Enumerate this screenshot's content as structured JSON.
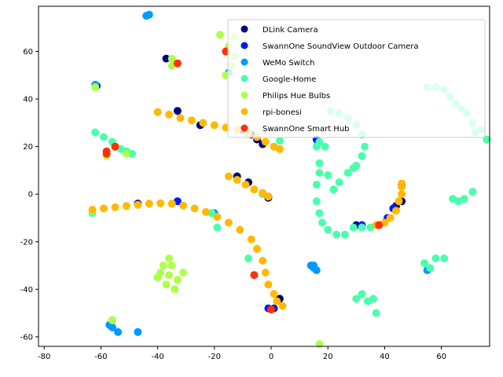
{
  "chart_data": {
    "type": "scatter",
    "title": "",
    "xlabel": "",
    "ylabel": "",
    "xlim": [
      -82,
      77
    ],
    "ylim": [
      -64,
      79
    ],
    "xticks": [
      -80,
      -60,
      -40,
      -20,
      0,
      20,
      40,
      60
    ],
    "yticks": [
      -60,
      -40,
      -20,
      0,
      20,
      40,
      60
    ],
    "grid": false,
    "legend_position": "top-right",
    "series": [
      {
        "name": "DLink Camera",
        "color": "#00007f",
        "points": [
          [
            -37,
            57
          ],
          [
            -33,
            35
          ],
          [
            -25,
            29
          ],
          [
            -12,
            7.5
          ],
          [
            -8,
            5
          ],
          [
            -10,
            27
          ],
          [
            -7,
            25
          ],
          [
            -5,
            23
          ],
          [
            -3,
            21
          ],
          [
            -1,
            -1
          ],
          [
            3,
            -44
          ],
          [
            -1,
            -1.5
          ],
          [
            44,
            -5
          ],
          [
            46,
            -3
          ],
          [
            46,
            4
          ],
          [
            30,
            -13
          ],
          [
            -47,
            -4
          ]
        ]
      },
      {
        "name": "SwannOne SoundView Outdoor Camera",
        "color": "#0019ff",
        "points": [
          [
            -61.5,
            45.5
          ],
          [
            -55,
            20
          ],
          [
            -1,
            -48
          ],
          [
            1,
            -48
          ],
          [
            32,
            -13
          ],
          [
            16,
            23
          ],
          [
            41,
            -10
          ],
          [
            43,
            -6
          ],
          [
            -33,
            -3
          ]
        ]
      },
      {
        "name": "WeMo Switch",
        "color": "#0099ff",
        "points": [
          [
            -44,
            75
          ],
          [
            -43,
            75.5
          ],
          [
            -15,
            51
          ],
          [
            -54,
            -58
          ],
          [
            -56,
            -56
          ],
          [
            -47,
            -58
          ],
          [
            -56,
            -53
          ],
          [
            -57,
            -55
          ],
          [
            14,
            -30
          ],
          [
            15,
            -31
          ],
          [
            16,
            -32
          ],
          [
            15,
            -30
          ],
          [
            55,
            -32
          ],
          [
            -62,
            46
          ],
          [
            -20,
            -8
          ]
        ]
      },
      {
        "name": "Google-Home",
        "color": "#49ffad",
        "points": [
          [
            -62,
            26
          ],
          [
            -59,
            24
          ],
          [
            -56,
            22
          ],
          [
            -53,
            19
          ],
          [
            -49,
            17
          ],
          [
            -51,
            18
          ],
          [
            3,
            22.5
          ],
          [
            -63,
            -8
          ],
          [
            -21,
            -8
          ],
          [
            -19,
            -14
          ],
          [
            -8,
            -27
          ],
          [
            -3,
            0
          ],
          [
            17,
            22
          ],
          [
            16,
            20
          ],
          [
            17,
            13
          ],
          [
            17,
            9
          ],
          [
            16,
            4
          ],
          [
            16,
            -3
          ],
          [
            17,
            -8
          ],
          [
            18,
            -12
          ],
          [
            20,
            -15
          ],
          [
            23,
            -17
          ],
          [
            26,
            -17
          ],
          [
            29,
            -14
          ],
          [
            32,
            -14
          ],
          [
            35,
            -14
          ],
          [
            38,
            -13
          ],
          [
            30,
            -44
          ],
          [
            32,
            -42
          ],
          [
            34,
            -45
          ],
          [
            36,
            -44
          ],
          [
            37,
            -50
          ],
          [
            54,
            -29
          ],
          [
            56,
            -31
          ],
          [
            58,
            -27
          ],
          [
            61,
            -27
          ],
          [
            64,
            -2
          ],
          [
            66,
            -3
          ],
          [
            68,
            -2
          ],
          [
            71,
            1
          ],
          [
            30,
            12
          ],
          [
            32,
            16
          ],
          [
            33,
            20
          ],
          [
            32,
            25
          ],
          [
            30,
            29
          ],
          [
            27,
            32
          ],
          [
            24,
            34
          ],
          [
            21,
            35
          ],
          [
            19,
            20
          ],
          [
            20,
            8
          ],
          [
            22,
            2
          ],
          [
            24,
            5
          ],
          [
            27,
            9
          ],
          [
            29,
            11
          ],
          [
            55,
            45
          ],
          [
            58,
            45
          ],
          [
            61,
            44
          ],
          [
            63,
            41
          ],
          [
            65,
            38
          ],
          [
            67,
            36
          ],
          [
            69,
            34
          ],
          [
            71,
            30
          ],
          [
            72,
            26
          ],
          [
            76,
            23
          ],
          [
            74,
            27
          ]
        ]
      },
      {
        "name": "Philips Hue Bulbs",
        "color": "#adff49",
        "points": [
          [
            -36,
            -34
          ],
          [
            -39,
            -33
          ],
          [
            -33,
            -36
          ],
          [
            -35,
            -30
          ],
          [
            -37,
            -38
          ],
          [
            -31,
            -33
          ],
          [
            -40,
            -35
          ],
          [
            -34,
            -40
          ],
          [
            -38,
            -30
          ],
          [
            -36,
            -27
          ],
          [
            -18,
            67
          ],
          [
            -15,
            62
          ],
          [
            -13,
            58
          ],
          [
            -14,
            54
          ],
          [
            -16,
            50
          ],
          [
            -13,
            66
          ],
          [
            -10,
            63
          ],
          [
            -35,
            57
          ],
          [
            -35,
            54
          ],
          [
            -58,
            16
          ],
          [
            -51,
            17
          ],
          [
            -56,
            -53
          ],
          [
            -55,
            20
          ],
          [
            -63,
            -7
          ],
          [
            17,
            -63
          ],
          [
            -62,
            45
          ]
        ]
      },
      {
        "name": "rpi-bonesi",
        "color": "#ffb900",
        "points": [
          [
            -40,
            34.5
          ],
          [
            -36,
            33.5
          ],
          [
            -32,
            32
          ],
          [
            -28,
            31
          ],
          [
            -24,
            30
          ],
          [
            -20,
            29
          ],
          [
            -16,
            28
          ],
          [
            -12,
            27
          ],
          [
            -8,
            25.5
          ],
          [
            -5,
            24
          ],
          [
            -2,
            22
          ],
          [
            1,
            20
          ],
          [
            3,
            19
          ],
          [
            -15,
            7.5
          ],
          [
            -12,
            6
          ],
          [
            -9,
            4
          ],
          [
            -6,
            2
          ],
          [
            -3,
            0.5
          ],
          [
            -1,
            -1
          ],
          [
            -63,
            -6.5
          ],
          [
            -59,
            -6
          ],
          [
            -55,
            -5.5
          ],
          [
            -51,
            -5
          ],
          [
            -47,
            -4.5
          ],
          [
            -43,
            -4
          ],
          [
            -39,
            -3.8
          ],
          [
            -35,
            -4
          ],
          [
            -31,
            -4.8
          ],
          [
            -27,
            -6
          ],
          [
            -23,
            -7.5
          ],
          [
            -19,
            -9.5
          ],
          [
            -15,
            -12
          ],
          [
            -11,
            -15
          ],
          [
            -7,
            -19
          ],
          [
            -5,
            -23
          ],
          [
            -3,
            -28
          ],
          [
            -2,
            -33
          ],
          [
            -1,
            -38
          ],
          [
            1,
            -42
          ],
          [
            2,
            -45
          ],
          [
            4,
            -47
          ],
          [
            37,
            -13
          ],
          [
            40,
            -12
          ],
          [
            42,
            -10
          ],
          [
            44,
            -7
          ],
          [
            45,
            -3
          ],
          [
            46,
            0
          ],
          [
            46,
            3
          ],
          [
            46,
            4.5
          ]
        ]
      },
      {
        "name": "SwannOne Smart Hub",
        "color": "#ff3100",
        "points": [
          [
            -58,
            17
          ],
          [
            -58,
            18
          ],
          [
            -55,
            20
          ],
          [
            -33,
            55
          ],
          [
            -16,
            60
          ],
          [
            -6,
            -34
          ],
          [
            0,
            -48.5
          ],
          [
            38,
            -13
          ]
        ]
      }
    ]
  }
}
